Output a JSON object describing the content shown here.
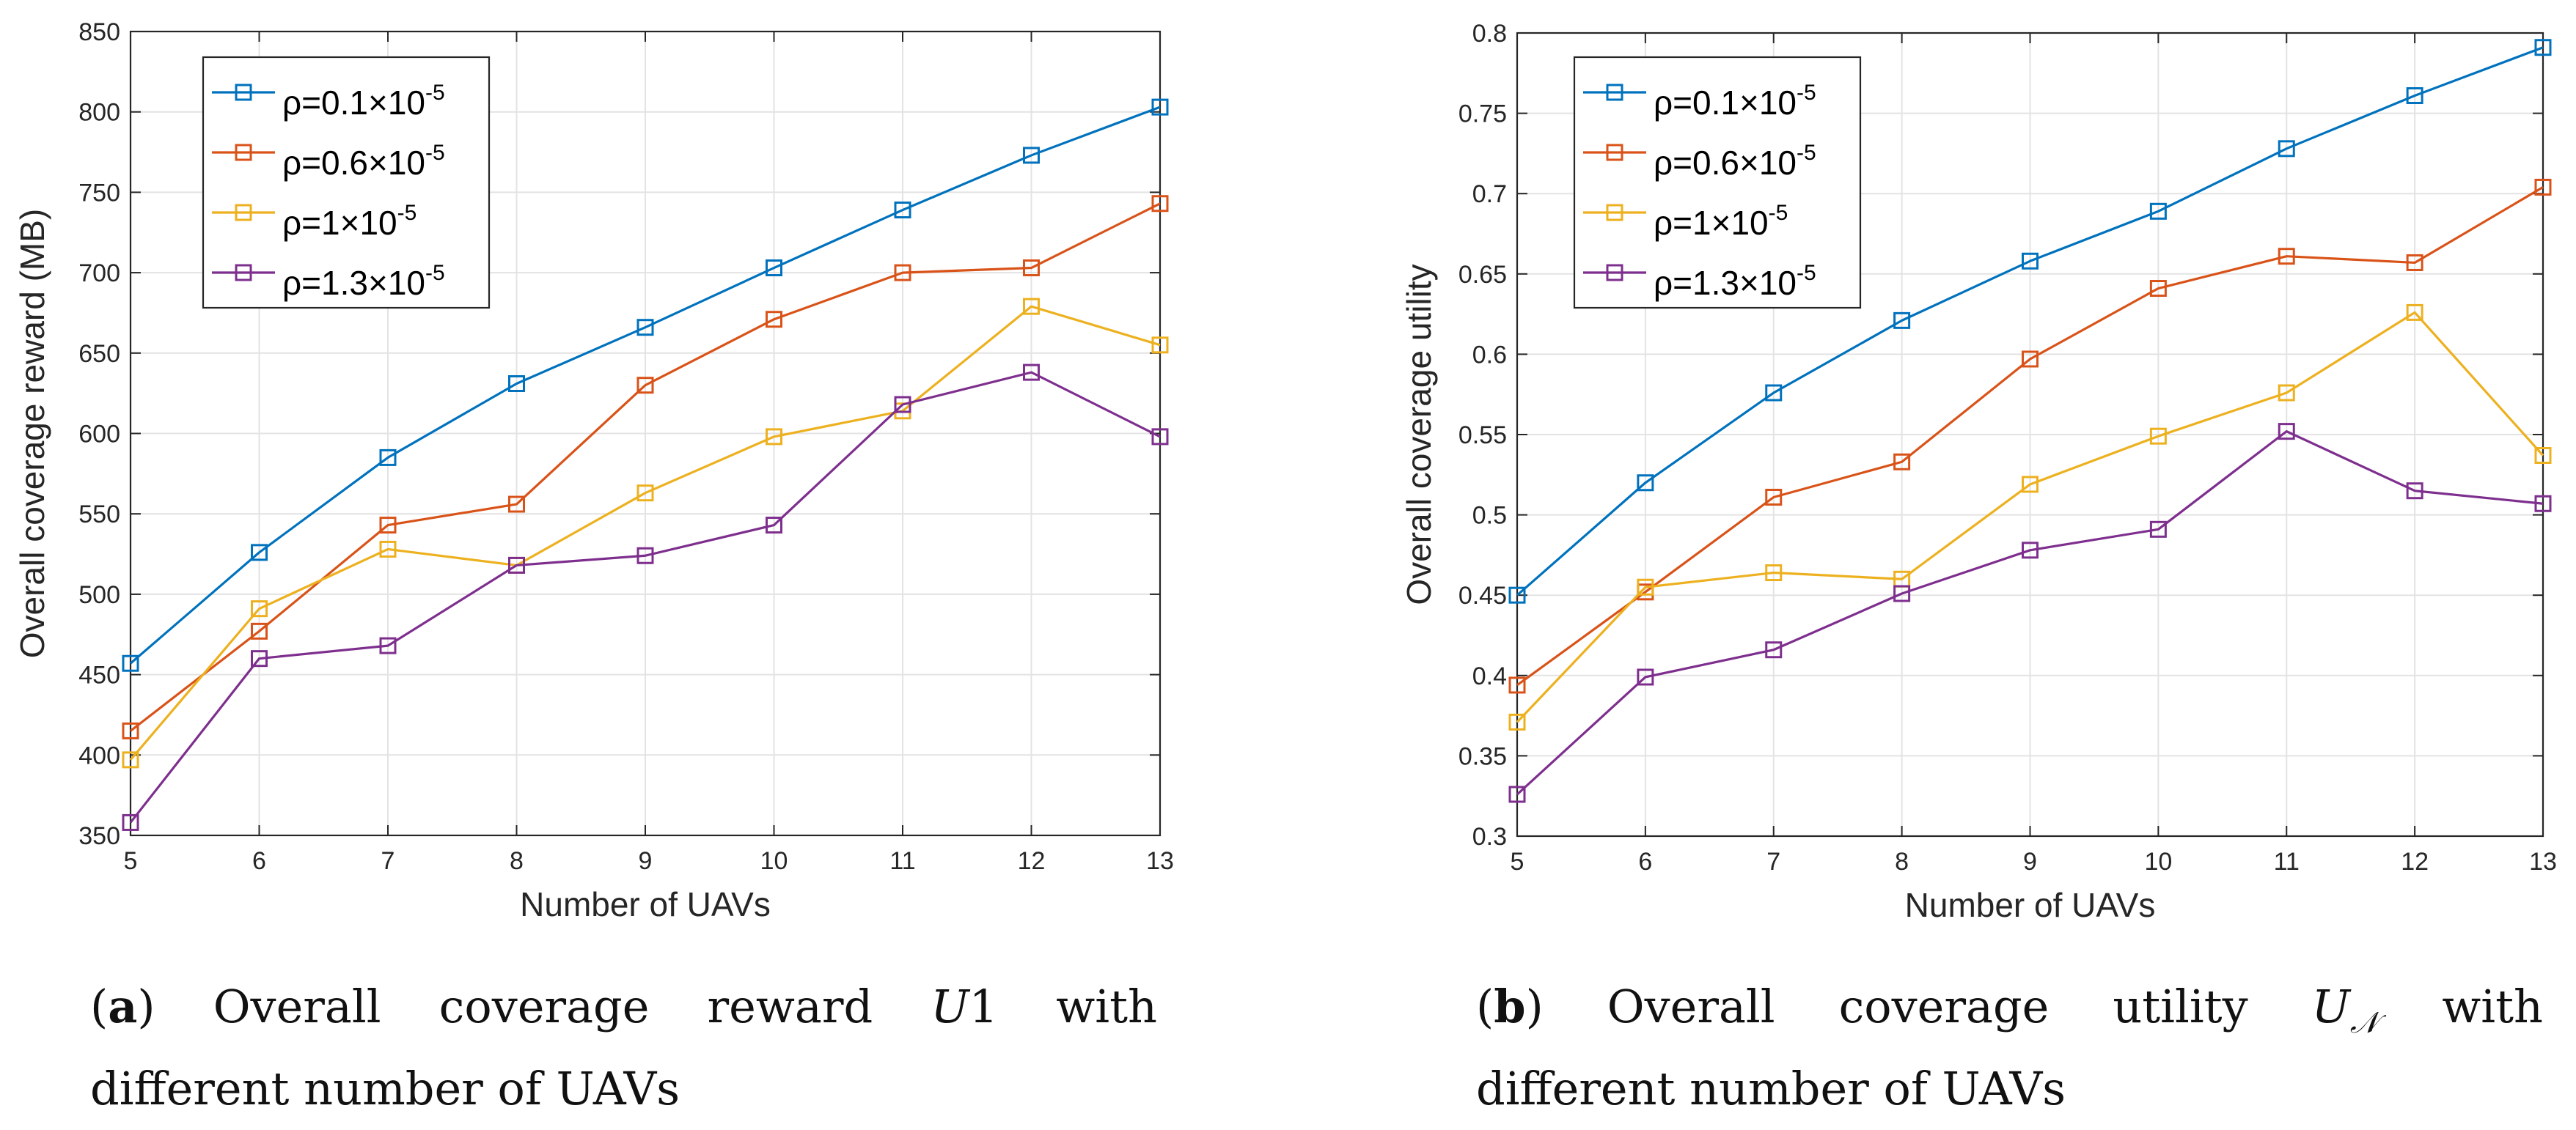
{
  "chart_data": [
    {
      "id": "a",
      "type": "line",
      "title": "",
      "xlabel": "Number of UAVs",
      "ylabel": "Overall coverage reward (MB)",
      "x": [
        5,
        6,
        7,
        8,
        9,
        10,
        11,
        12,
        13
      ],
      "xlim": [
        5,
        13
      ],
      "ylim": [
        350,
        850
      ],
      "xticks": [
        "5",
        "6",
        "7",
        "8",
        "9",
        "10",
        "11",
        "12",
        "13"
      ],
      "yticks": [
        "350",
        "400",
        "450",
        "500",
        "550",
        "600",
        "650",
        "700",
        "750",
        "800",
        "850"
      ],
      "grid": true,
      "legend_position": "top-left",
      "series": [
        {
          "name": "ρ=0.1×10-5",
          "base": "ρ=0.1×10",
          "exp": "-5",
          "color": "#0072BD",
          "values": [
            457,
            526,
            585,
            631,
            666,
            703,
            739,
            773,
            803
          ]
        },
        {
          "name": "ρ=0.6×10-5",
          "base": "ρ=0.6×10",
          "exp": "-5",
          "color": "#D95319",
          "values": [
            415,
            477,
            543,
            556,
            630,
            671,
            700,
            703,
            743
          ]
        },
        {
          "name": "ρ=1×10-5",
          "base": "ρ=1×10",
          "exp": "-5",
          "color": "#EDB120",
          "values": [
            397,
            491,
            528,
            518,
            563,
            598,
            614,
            679,
            655
          ]
        },
        {
          "name": "ρ=1.3×10-5",
          "base": "ρ=1.3×10",
          "exp": "-5",
          "color": "#7E2F8E",
          "values": [
            358,
            460,
            468,
            518,
            524,
            543,
            618,
            638,
            598
          ]
        }
      ]
    },
    {
      "id": "b",
      "type": "line",
      "title": "",
      "xlabel": "Number of UAVs",
      "ylabel": "Overall coverage utility",
      "x": [
        5,
        6,
        7,
        8,
        9,
        10,
        11,
        12,
        13
      ],
      "xlim": [
        5,
        13
      ],
      "ylim": [
        0.3,
        0.8
      ],
      "xticks": [
        "5",
        "6",
        "7",
        "8",
        "9",
        "10",
        "11",
        "12",
        "13"
      ],
      "yticks": [
        "0.3",
        "0.35",
        "0.4",
        "0.45",
        "0.5",
        "0.55",
        "0.6",
        "0.65",
        "0.7",
        "0.75",
        "0.8"
      ],
      "grid": true,
      "legend_position": "top-left",
      "series": [
        {
          "name": "ρ=0.1×10-5",
          "base": "ρ=0.1×10",
          "exp": "-5",
          "color": "#0072BD",
          "values": [
            0.45,
            0.52,
            0.576,
            0.621,
            0.658,
            0.689,
            0.728,
            0.761,
            0.791
          ]
        },
        {
          "name": "ρ=0.6×10-5",
          "base": "ρ=0.6×10",
          "exp": "-5",
          "color": "#D95319",
          "values": [
            0.394,
            0.452,
            0.511,
            0.533,
            0.597,
            0.641,
            0.661,
            0.657,
            0.704
          ]
        },
        {
          "name": "ρ=1×10-5",
          "base": "ρ=1×10",
          "exp": "-5",
          "color": "#EDB120",
          "values": [
            0.371,
            0.455,
            0.464,
            0.46,
            0.519,
            0.549,
            0.576,
            0.626,
            0.537
          ]
        },
        {
          "name": "ρ=1.3×10-5",
          "base": "ρ=1.3×10",
          "exp": "-5",
          "color": "#7E2F8E",
          "values": [
            0.326,
            0.399,
            0.416,
            0.451,
            0.478,
            0.491,
            0.552,
            0.515,
            0.507
          ]
        }
      ]
    }
  ],
  "captions": {
    "a": {
      "label": "a",
      "text1": "Overall",
      "text2": "coverage",
      "text3": "reward",
      "symbol": "U",
      "symbol_tail": "1",
      "text4": "with",
      "line2": "different number of UAVs"
    },
    "b": {
      "label": "b",
      "text1": "Overall",
      "text2": "coverage",
      "text3": "utility",
      "symbol": "U",
      "symbol_sub": "𝒩",
      "text4": "with",
      "line2": "different number of UAVs"
    }
  }
}
